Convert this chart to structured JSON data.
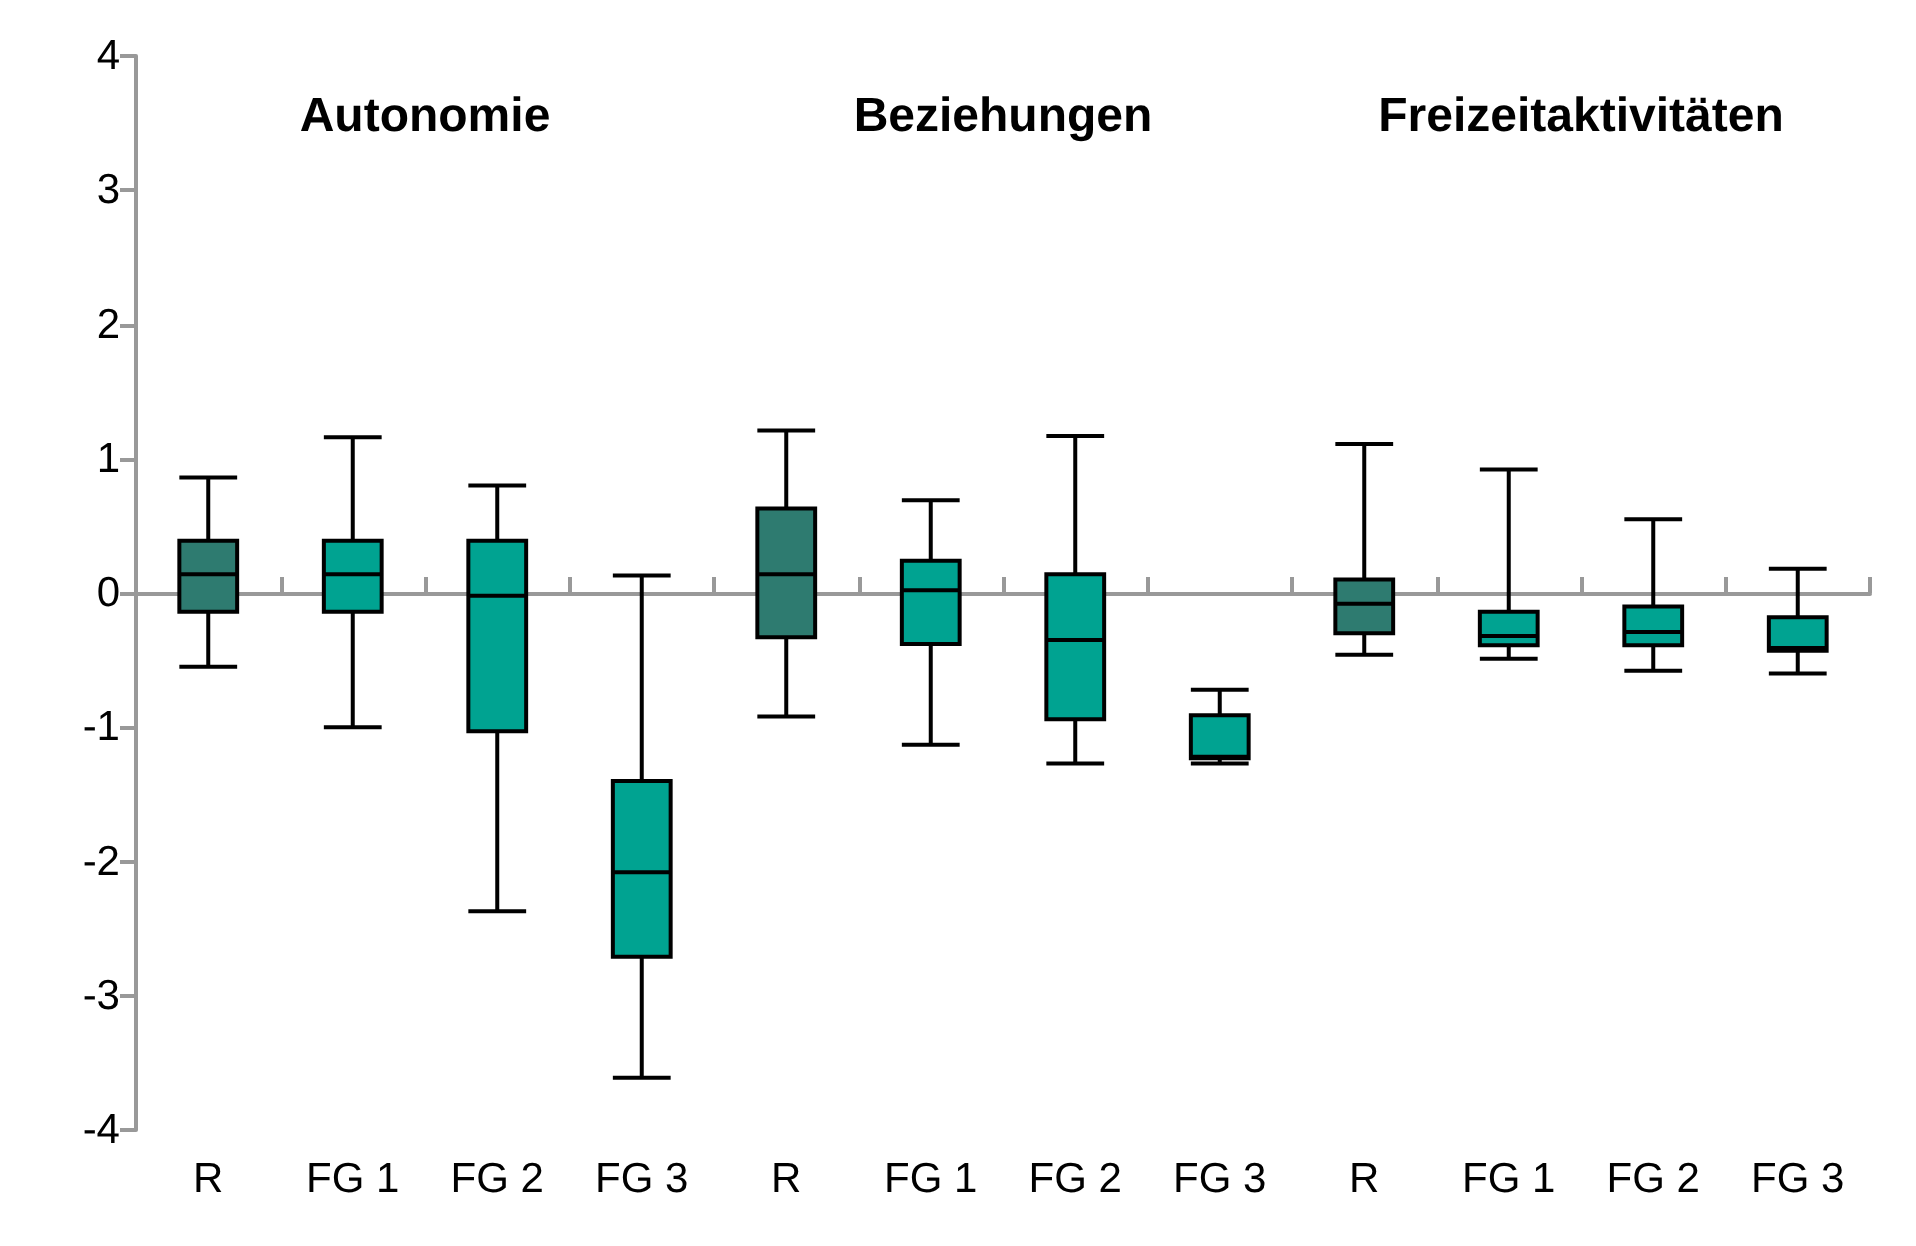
{
  "chart_data": {
    "type": "box",
    "categories": [
      "R",
      "FG 1",
      "FG 2",
      "FG 3",
      "R",
      "FG 1",
      "FG 2",
      "FG 3",
      "R",
      "FG 1",
      "FG 2",
      "FG 3"
    ],
    "boxes": [
      {
        "low": -0.55,
        "q1": -0.14,
        "median": 0.14,
        "q3": 0.39,
        "high": 0.86
      },
      {
        "low": -1.0,
        "q1": -0.14,
        "median": 0.14,
        "q3": 0.39,
        "high": 1.16
      },
      {
        "low": -2.37,
        "q1": -1.03,
        "median": -0.02,
        "q3": 0.39,
        "high": 0.8
      },
      {
        "low": -3.61,
        "q1": -2.71,
        "median": -2.08,
        "q3": -1.4,
        "high": 0.13
      },
      {
        "low": -0.92,
        "q1": -0.33,
        "median": 0.14,
        "q3": 0.63,
        "high": 1.21
      },
      {
        "low": -1.13,
        "q1": -0.38,
        "median": 0.02,
        "q3": 0.24,
        "high": 0.69
      },
      {
        "low": -1.27,
        "q1": -0.94,
        "median": -0.35,
        "q3": 0.14,
        "high": 1.17
      },
      {
        "low": -1.27,
        "q1": -1.23,
        "median": -1.22,
        "q3": -0.91,
        "high": -0.72
      },
      {
        "low": -0.46,
        "q1": -0.3,
        "median": -0.08,
        "q3": 0.1,
        "high": 1.11
      },
      {
        "low": -0.49,
        "q1": -0.39,
        "median": -0.32,
        "q3": -0.14,
        "high": 0.92
      },
      {
        "low": -0.58,
        "q1": -0.39,
        "median": -0.29,
        "q3": -0.1,
        "high": 0.55
      },
      {
        "low": -0.6,
        "q1": -0.43,
        "median": -0.41,
        "q3": -0.18,
        "high": 0.18
      }
    ],
    "colors": [
      "#2e7b70",
      "#00a391",
      "#00a391",
      "#00a391",
      "#2e7b70",
      "#00a391",
      "#00a391",
      "#00a391",
      "#2e7b70",
      "#00a391",
      "#00a391",
      "#00a391"
    ],
    "annotations": [
      "Autonomie",
      "Beziehungen",
      "Freizeitaktivitäten"
    ],
    "ylim": [
      -4,
      4
    ],
    "yticks": [
      -4,
      -3,
      -2,
      -1,
      0,
      1,
      2,
      3,
      4
    ]
  }
}
